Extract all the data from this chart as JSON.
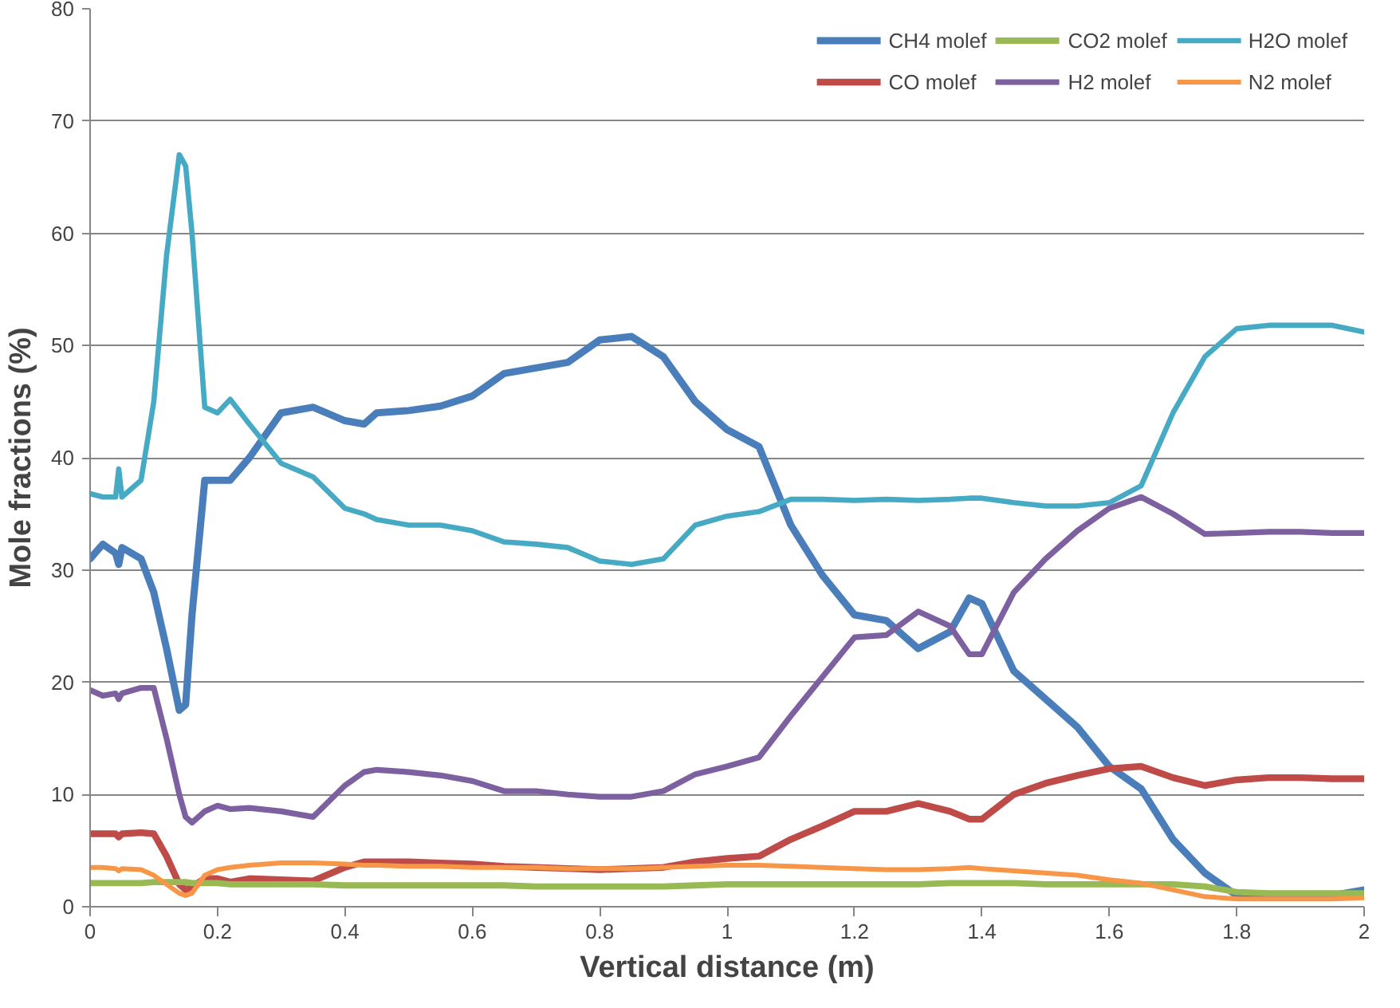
{
  "chart_data": {
    "type": "line",
    "xlabel": "Vertical distance (m)",
    "ylabel": "Mole fractions (%)",
    "xlim": [
      0,
      2
    ],
    "ylim": [
      0,
      80
    ],
    "xticks": [
      0,
      0.2,
      0.4,
      0.6,
      0.8,
      1,
      1.2,
      1.4,
      1.6,
      1.8,
      2
    ],
    "yticks": [
      0,
      10,
      20,
      30,
      40,
      50,
      60,
      70,
      80
    ],
    "grid": "y",
    "legend": "top right",
    "marker": "none",
    "line_style": "solid",
    "x": [
      0,
      0.02,
      0.04,
      0.045,
      0.05,
      0.08,
      0.1,
      0.12,
      0.14,
      0.15,
      0.16,
      0.18,
      0.2,
      0.22,
      0.25,
      0.3,
      0.35,
      0.4,
      0.43,
      0.45,
      0.5,
      0.55,
      0.6,
      0.65,
      0.7,
      0.75,
      0.8,
      0.85,
      0.9,
      0.95,
      1.0,
      1.05,
      1.1,
      1.15,
      1.2,
      1.25,
      1.3,
      1.35,
      1.38,
      1.4,
      1.45,
      1.5,
      1.55,
      1.6,
      1.65,
      1.7,
      1.75,
      1.8,
      1.85,
      1.9,
      1.95,
      2.0
    ],
    "series": [
      {
        "name": "CH4 molef",
        "color": "#4a7ebb",
        "values": [
          31,
          32.3,
          31.5,
          30.5,
          32,
          31,
          28,
          23,
          17.5,
          18,
          26,
          38,
          38,
          38,
          40,
          44,
          44.5,
          43.3,
          43,
          44,
          44.2,
          44.6,
          45.5,
          47.5,
          48,
          48.5,
          50.5,
          50.8,
          49,
          45,
          42.5,
          41,
          34,
          29.5,
          26,
          25.5,
          23,
          24.5,
          27.5,
          27,
          21,
          18.5,
          16,
          12.5,
          10.5,
          6,
          3,
          1,
          1,
          1,
          1,
          1.5
        ]
      },
      {
        "name": "CO molef",
        "color": "#be4b48",
        "values": [
          6.5,
          6.5,
          6.5,
          6.2,
          6.5,
          6.6,
          6.5,
          4.5,
          2,
          1.5,
          1.8,
          2.5,
          2.5,
          2.2,
          2.5,
          2.4,
          2.3,
          3.5,
          4,
          4,
          4,
          3.9,
          3.8,
          3.6,
          3.5,
          3.4,
          3.3,
          3.4,
          3.5,
          4,
          4.3,
          4.5,
          6,
          7.2,
          8.5,
          8.5,
          9.2,
          8.5,
          7.8,
          7.8,
          10,
          11,
          11.7,
          12.3,
          12.5,
          11.5,
          10.8,
          11.3,
          11.5,
          11.5,
          11.4,
          11.4
        ]
      },
      {
        "name": "CO2 molef",
        "color": "#98b954",
        "values": [
          2.1,
          2.1,
          2.1,
          2.1,
          2.1,
          2.1,
          2.2,
          2.2,
          2.2,
          2.2,
          2.1,
          2.1,
          2.1,
          2.0,
          2.0,
          2.0,
          2.0,
          1.9,
          1.9,
          1.9,
          1.9,
          1.9,
          1.9,
          1.9,
          1.8,
          1.8,
          1.8,
          1.8,
          1.8,
          1.9,
          2.0,
          2.0,
          2.0,
          2.0,
          2.0,
          2.0,
          2.0,
          2.1,
          2.1,
          2.1,
          2.1,
          2.0,
          2.0,
          2.0,
          2.0,
          2.0,
          1.8,
          1.3,
          1.2,
          1.2,
          1.2,
          1.2
        ]
      },
      {
        "name": "H2 molef",
        "color": "#7d60a0",
        "values": [
          19.3,
          18.8,
          19,
          18.5,
          19,
          19.5,
          19.5,
          15,
          10,
          8,
          7.5,
          8.5,
          9,
          8.7,
          8.8,
          8.5,
          8,
          10.8,
          12,
          12.2,
          12,
          11.7,
          11.2,
          10.3,
          10.3,
          10,
          9.8,
          9.8,
          10.3,
          11.8,
          12.5,
          13.3,
          17,
          20.5,
          24,
          24.2,
          26.3,
          25,
          22.5,
          22.5,
          28,
          31,
          33.5,
          35.5,
          36.5,
          35,
          33.2,
          33.3,
          33.4,
          33.4,
          33.3,
          33.3
        ]
      },
      {
        "name": "H2O molef",
        "color": "#46aac5",
        "values": [
          36.8,
          36.5,
          36.5,
          39,
          36.5,
          38,
          45,
          58,
          67,
          66,
          60,
          44.5,
          44,
          45.2,
          43,
          39.5,
          38.3,
          35.5,
          35,
          34.5,
          34,
          34,
          33.5,
          32.5,
          32.3,
          32,
          30.8,
          30.5,
          31,
          34,
          34.8,
          35.2,
          36.3,
          36.3,
          36.2,
          36.3,
          36.2,
          36.3,
          36.4,
          36.4,
          36.0,
          35.7,
          35.7,
          36,
          37.5,
          44,
          49,
          51.5,
          51.8,
          51.8,
          51.8,
          51.2
        ]
      },
      {
        "name": "N2 molef",
        "color": "#f79646",
        "values": [
          3.5,
          3.5,
          3.4,
          3.2,
          3.4,
          3.3,
          2.8,
          2,
          1.2,
          1,
          1.2,
          2.8,
          3.3,
          3.5,
          3.7,
          3.9,
          3.9,
          3.8,
          3.7,
          3.7,
          3.6,
          3.6,
          3.5,
          3.5,
          3.5,
          3.4,
          3.4,
          3.4,
          3.5,
          3.6,
          3.7,
          3.7,
          3.6,
          3.5,
          3.4,
          3.3,
          3.3,
          3.4,
          3.5,
          3.4,
          3.2,
          3,
          2.8,
          2.4,
          2.1,
          1.5,
          0.9,
          0.7,
          0.7,
          0.7,
          0.7,
          0.8
        ]
      }
    ]
  }
}
